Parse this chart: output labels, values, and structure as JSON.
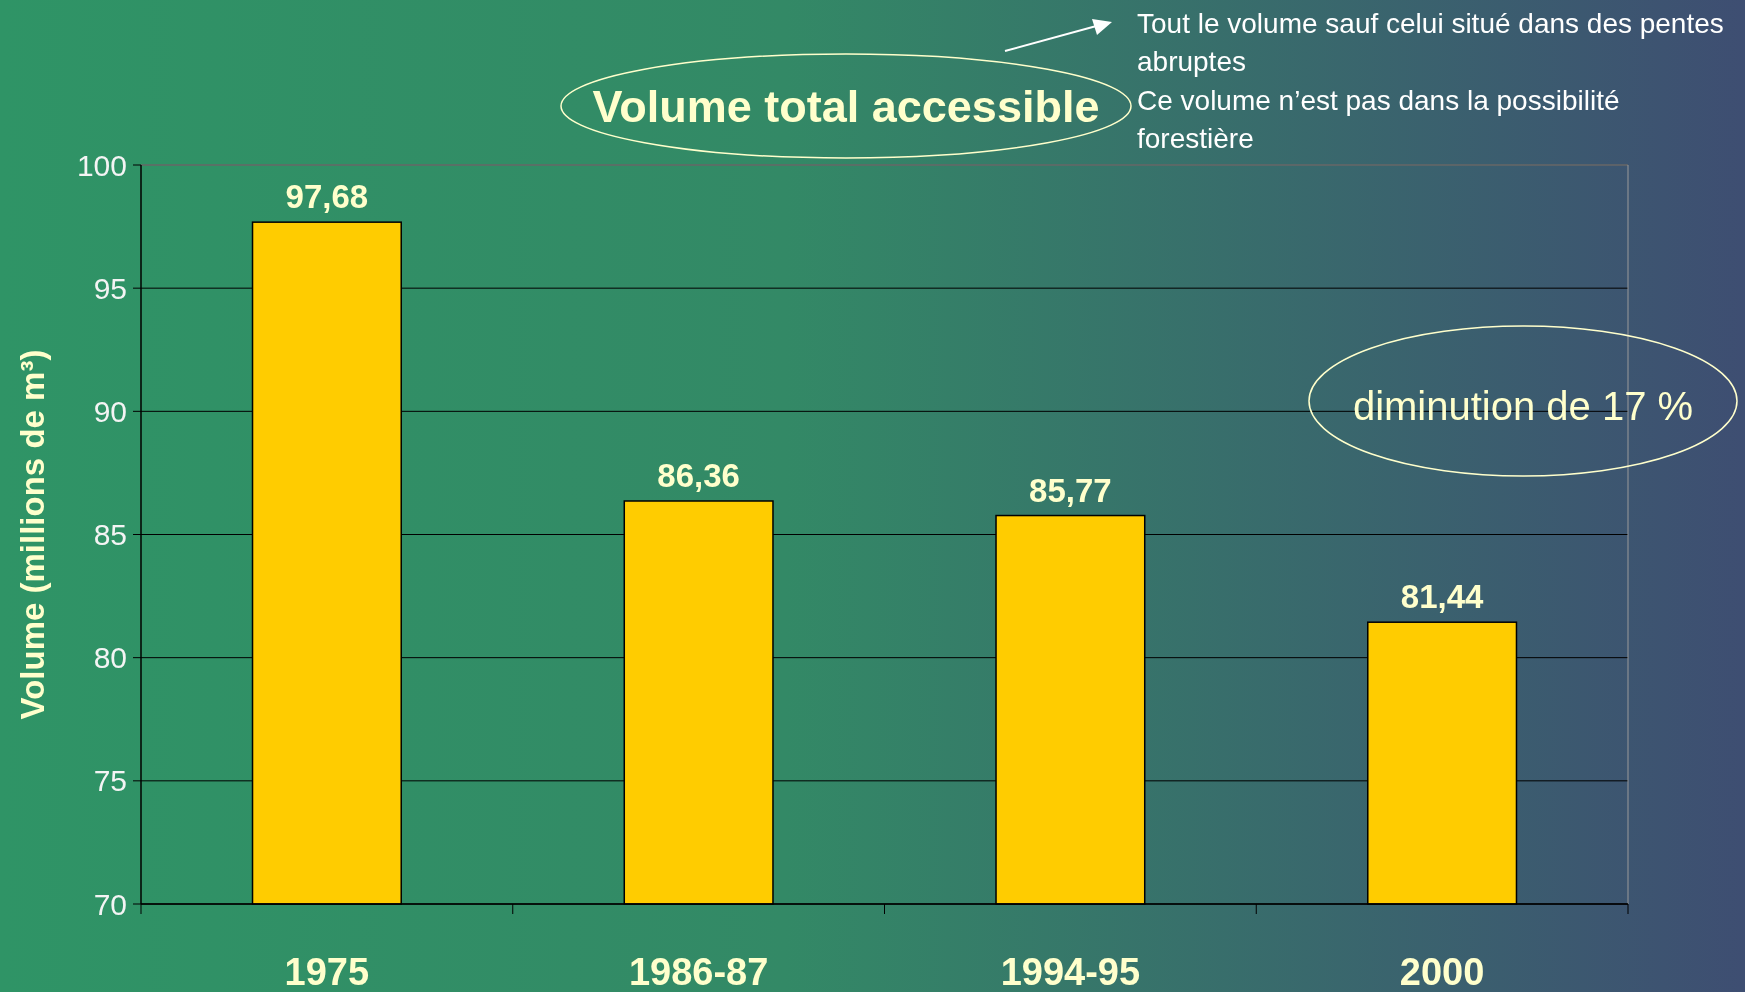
{
  "chart_data": {
    "type": "bar",
    "title": "Volume total accessible",
    "ylabel": "Volume (millions de m³)",
    "categories": [
      "1975",
      "1986-87",
      "1994-95",
      "2000"
    ],
    "values": [
      97.68,
      86.36,
      85.77,
      81.44
    ],
    "value_labels": [
      "97,68",
      "86,36",
      "85,77",
      "81,44"
    ],
    "color": "#ffcc00",
    "ylim": [
      70,
      100
    ],
    "yticks": [
      70,
      75,
      80,
      85,
      90,
      95,
      100
    ],
    "grid": "y",
    "annotations": [
      "Tout le volume sauf celui situé dans des pentes abruptes",
      "Ce volume n’est pas dans la possibilité forestière",
      "diminution de 17 %"
    ]
  }
}
